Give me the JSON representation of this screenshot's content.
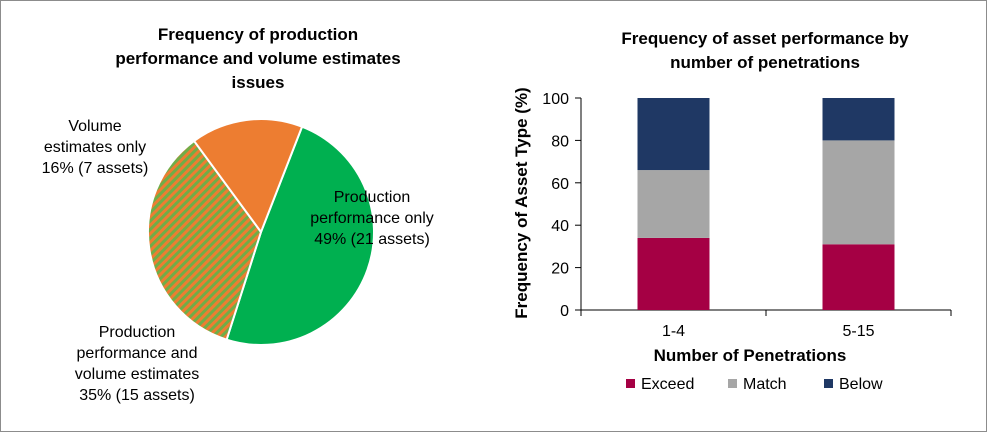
{
  "chart_data": [
    {
      "type": "pie",
      "title_lines": [
        "Frequency of production",
        "performance and volume estimates",
        "issues"
      ],
      "slices": [
        {
          "name": "Production performance only",
          "value": 49,
          "assets": 21,
          "color": "#00b050",
          "pattern": null,
          "label_lines": [
            "Production",
            "performance only",
            "49% (21 assets)"
          ]
        },
        {
          "name": "Production performance and volume estimates",
          "value": 35,
          "assets": 15,
          "color": "#70ad47",
          "pattern": "orange-hatch",
          "label_lines": [
            "Production",
            "performance and",
            "volume estimates",
            "35% (15 assets)"
          ]
        },
        {
          "name": "Volume estimates only",
          "value": 16,
          "assets": 7,
          "color": "#ed7d31",
          "pattern": null,
          "label_lines": [
            "Volume",
            "estimates only",
            "16% (7 assets)"
          ]
        }
      ]
    },
    {
      "type": "bar",
      "stacked": true,
      "title_lines": [
        "Frequency of asset performance by",
        "number of penetrations"
      ],
      "xlabel": "Number of Penetrations",
      "ylabel": "Frequency of Asset Type (%)",
      "categories": [
        "1-4",
        "5-15"
      ],
      "ylim": [
        0,
        100
      ],
      "yticks": [
        0,
        20,
        40,
        60,
        80,
        100
      ],
      "series": [
        {
          "name": "Exceed",
          "values": [
            34,
            31
          ],
          "color": "#a50044"
        },
        {
          "name": "Match",
          "values": [
            32,
            49
          ],
          "color": "#a6a6a6"
        },
        {
          "name": "Below",
          "values": [
            34,
            20
          ],
          "color": "#1f3864"
        }
      ],
      "legend_position": "bottom"
    }
  ]
}
